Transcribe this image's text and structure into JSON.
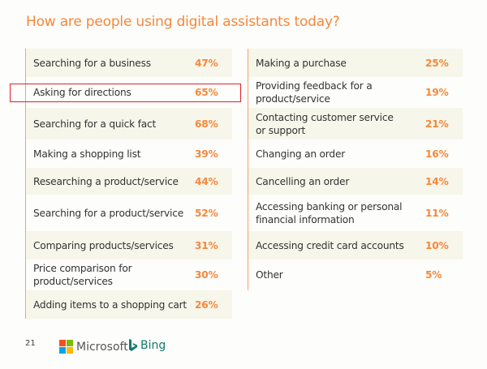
{
  "title": "How are people using digital assistants today?",
  "left": [
    {
      "label": "Searching for a business",
      "value": "47%"
    },
    {
      "label": "Asking for directions",
      "value": "65%"
    },
    {
      "label": "Searching for a quick fact",
      "value": "68%"
    },
    {
      "label": "Making a shopping list",
      "value": "39%"
    },
    {
      "label": "Researching a product/service",
      "value": "44%"
    },
    {
      "label": "Searching for a product/service",
      "value": "52%"
    },
    {
      "label": "Comparing products/services",
      "value": "31%"
    },
    {
      "label": "Price comparison for product/services",
      "value": "30%"
    },
    {
      "label": "Adding items to a shopping cart",
      "value": "26%"
    }
  ],
  "right": [
    {
      "label": "Making a purchase",
      "value": "25%"
    },
    {
      "label": "Providing feedback for a product/service",
      "value": "19%"
    },
    {
      "label": "Contacting customer service or support",
      "value": "21%"
    },
    {
      "label": "Changing an order",
      "value": "16%"
    },
    {
      "label": "Cancelling an order",
      "value": "14%"
    },
    {
      "label": "Accessing banking or personal financial information",
      "value": "11%"
    },
    {
      "label": "Accessing credit card accounts",
      "value": "10%"
    },
    {
      "label": "Other",
      "value": "5%"
    }
  ],
  "footer": {
    "page": "21",
    "microsoft": "Microsoft",
    "bing": "Bing"
  },
  "colors": {
    "accent": "#f5883a",
    "highlight": "#e2202a",
    "bing": "#127a6d"
  }
}
